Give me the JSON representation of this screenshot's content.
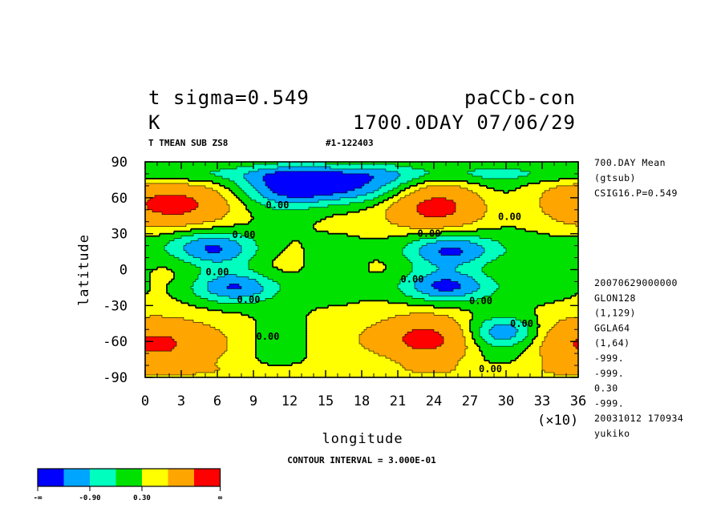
{
  "header": {
    "title_left": "t sigma=0.549",
    "title_right": "paCCb-con",
    "unit": "K",
    "datetime": "1700.0DAY 07/06/29",
    "subtitle_left": "T TMEAN SUB ZS8",
    "subtitle_right": "#1-122403"
  },
  "info_top": [
    "700.DAY Mean",
    "(gtsub)",
    "CSIG16.P=0.549"
  ],
  "info_bottom": [
    "20070629000000",
    "GLON128",
    "(1,129)",
    "GGLA64",
    "(1,64)",
    "-999.",
    "-999.",
    "0.30",
    "-999.",
    "20031012 170934",
    "yukiko"
  ],
  "x_multiplier": "(×10)",
  "contour_interval": "CONTOUR INTERVAL = 3.000E-01",
  "legend": {
    "colors": [
      "#0000ff",
      "#00a5ff",
      "#00ffbe",
      "#00e100",
      "#ffff00",
      "#ffa500",
      "#ff0000"
    ],
    "labels": [
      "-∞",
      "-0.90",
      "0.30",
      "∞"
    ]
  },
  "chart_data": {
    "type": "contour",
    "title": "t sigma=0.549",
    "xlabel": "longitude",
    "ylabel": "latitude",
    "xlim": [
      0,
      36
    ],
    "ylim": [
      -90,
      90
    ],
    "xticks": [
      "0",
      "3",
      "6",
      "9",
      "12",
      "15",
      "18",
      "21",
      "24",
      "27",
      "30",
      "33",
      "36"
    ],
    "yticks": [
      "90",
      "60",
      "30",
      "0",
      "-30",
      "-60",
      "-90"
    ],
    "contour_labels": [
      {
        "text": "0.00",
        "x": 11.0,
        "y": 54
      },
      {
        "text": "0.00",
        "x": 30.3,
        "y": 44
      },
      {
        "text": "0.00",
        "x": 8.2,
        "y": 29
      },
      {
        "text": "0.00",
        "x": 23.6,
        "y": 30
      },
      {
        "text": "0.00",
        "x": 6.0,
        "y": -2
      },
      {
        "text": "0.00",
        "x": 22.2,
        "y": -8
      },
      {
        "text": "0.00",
        "x": 8.6,
        "y": -25
      },
      {
        "text": "0.00",
        "x": 27.9,
        "y": -26
      },
      {
        "text": "0.00",
        "x": 31.3,
        "y": -45
      },
      {
        "text": "0.00",
        "x": 10.2,
        "y": -56
      },
      {
        "text": "0.00",
        "x": 28.7,
        "y": -83
      }
    ],
    "warm_maxima": [
      {
        "x": 2.3,
        "y": 55
      },
      {
        "x": 23.8,
        "y": 52
      },
      {
        "x": 1.5,
        "y": -62
      },
      {
        "x": 22.6,
        "y": -58
      }
    ],
    "cold_minima": [
      {
        "x": 14.5,
        "y": 69
      },
      {
        "x": 5.3,
        "y": 18
      },
      {
        "x": 25.7,
        "y": 16
      },
      {
        "x": 7.7,
        "y": -15
      },
      {
        "x": 25.2,
        "y": -14
      },
      {
        "x": 29.8,
        "y": -52
      }
    ]
  }
}
